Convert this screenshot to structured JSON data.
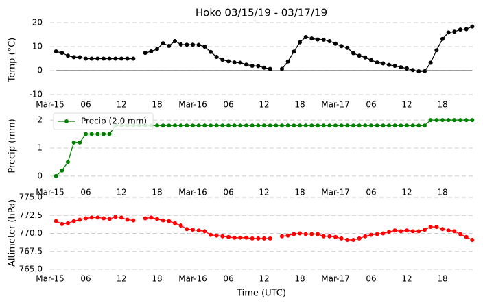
{
  "chart_data": [
    {
      "type": "line",
      "title": "Hoko 03/15/19 - 03/17/19",
      "y_label": "Temp (°C)",
      "x": [
        "2019-03-15T01:00",
        "2019-03-15T02:00",
        "2019-03-15T03:00",
        "2019-03-15T04:00",
        "2019-03-15T05:00",
        "2019-03-15T06:00",
        "2019-03-15T07:00",
        "2019-03-15T08:00",
        "2019-03-15T09:00",
        "2019-03-15T10:00",
        "2019-03-15T11:00",
        "2019-03-15T12:00",
        "2019-03-15T13:00",
        "2019-03-15T14:00",
        "2019-03-15T15:00",
        "2019-03-15T16:00",
        "2019-03-15T17:00",
        "2019-03-15T18:00",
        "2019-03-15T19:00",
        "2019-03-15T20:00",
        "2019-03-15T21:00",
        "2019-03-15T22:00",
        "2019-03-15T23:00",
        "2019-03-16T00:00",
        "2019-03-16T01:00",
        "2019-03-16T02:00",
        "2019-03-16T03:00",
        "2019-03-16T04:00",
        "2019-03-16T05:00",
        "2019-03-16T06:00",
        "2019-03-16T07:00",
        "2019-03-16T08:00",
        "2019-03-16T09:00",
        "2019-03-16T10:00",
        "2019-03-16T11:00",
        "2019-03-16T12:00",
        "2019-03-16T13:00",
        "2019-03-16T14:00",
        "2019-03-16T15:00",
        "2019-03-16T16:00",
        "2019-03-16T17:00",
        "2019-03-16T18:00",
        "2019-03-16T19:00",
        "2019-03-16T20:00",
        "2019-03-16T21:00",
        "2019-03-16T22:00",
        "2019-03-16T23:00",
        "2019-03-17T00:00",
        "2019-03-17T01:00",
        "2019-03-17T02:00",
        "2019-03-17T03:00",
        "2019-03-17T04:00",
        "2019-03-17T05:00",
        "2019-03-17T06:00",
        "2019-03-17T07:00",
        "2019-03-17T08:00",
        "2019-03-17T09:00",
        "2019-03-17T10:00",
        "2019-03-17T11:00",
        "2019-03-17T12:00",
        "2019-03-17T13:00",
        "2019-03-17T14:00",
        "2019-03-17T15:00",
        "2019-03-17T16:00",
        "2019-03-17T17:00",
        "2019-03-17T18:00",
        "2019-03-17T19:00",
        "2019-03-17T20:00",
        "2019-03-17T21:00",
        "2019-03-17T22:00",
        "2019-03-17T23:00"
      ],
      "series": [
        {
          "color": "#000000",
          "values": [
            8,
            7.4,
            6.2,
            5.6,
            5.6,
            5,
            5,
            5,
            5,
            5,
            5,
            5,
            5,
            5,
            null,
            7.4,
            8,
            9,
            11.4,
            10.3,
            12.3,
            10.9,
            10.8,
            10.8,
            10.7,
            10,
            7.8,
            5.7,
            4.5,
            3.9,
            3.4,
            3.3,
            2.5,
            2,
            1.9,
            1.2,
            0.7,
            null,
            0.7,
            3.8,
            7.9,
            11.8,
            14,
            13.4,
            13,
            12.9,
            12.3,
            11.2,
            10.2,
            9.5,
            7.3,
            6.2,
            5.5,
            4.4,
            3.4,
            3,
            2.4,
            2,
            1.4,
            0.9,
            0.2,
            -0.3,
            -0.3,
            3.3,
            8.5,
            13.2,
            15.9,
            16.2,
            17.1,
            17.3,
            18.4
          ]
        }
      ],
      "xlim": [
        "2019-03-15T00:00",
        "2019-03-18T00:00"
      ],
      "xticks": [
        {
          "value": "2019-03-15T00:00",
          "label": "Mar-15"
        },
        {
          "value": "2019-03-15T06:00",
          "label": "06"
        },
        {
          "value": "2019-03-15T12:00",
          "label": "12"
        },
        {
          "value": "2019-03-15T18:00",
          "label": "18"
        },
        {
          "value": "2019-03-16T00:00",
          "label": "Mar-16"
        },
        {
          "value": "2019-03-16T06:00",
          "label": "06"
        },
        {
          "value": "2019-03-16T12:00",
          "label": "12"
        },
        {
          "value": "2019-03-16T18:00",
          "label": "18"
        },
        {
          "value": "2019-03-17T00:00",
          "label": "Mar-17"
        },
        {
          "value": "2019-03-17T06:00",
          "label": "06"
        },
        {
          "value": "2019-03-17T12:00",
          "label": "12"
        },
        {
          "value": "2019-03-17T18:00",
          "label": "18"
        }
      ],
      "ylim": [
        -12,
        21
      ],
      "yticks": [
        -10,
        0,
        10,
        20
      ],
      "grid": true,
      "zero_line": true
    },
    {
      "type": "line",
      "y_label": "Precip (mm)",
      "x": [
        "2019-03-15T01:00",
        "2019-03-15T02:00",
        "2019-03-15T03:00",
        "2019-03-15T04:00",
        "2019-03-15T05:00",
        "2019-03-15T06:00",
        "2019-03-15T07:00",
        "2019-03-15T08:00",
        "2019-03-15T09:00",
        "2019-03-15T10:00",
        "2019-03-15T11:00",
        "2019-03-15T12:00",
        "2019-03-15T13:00",
        "2019-03-15T14:00",
        "2019-03-15T15:00",
        "2019-03-15T16:00",
        "2019-03-15T17:00",
        "2019-03-15T18:00",
        "2019-03-15T19:00",
        "2019-03-15T20:00",
        "2019-03-15T21:00",
        "2019-03-15T22:00",
        "2019-03-15T23:00",
        "2019-03-16T00:00",
        "2019-03-16T01:00",
        "2019-03-16T02:00",
        "2019-03-16T03:00",
        "2019-03-16T04:00",
        "2019-03-16T05:00",
        "2019-03-16T06:00",
        "2019-03-16T07:00",
        "2019-03-16T08:00",
        "2019-03-16T09:00",
        "2019-03-16T10:00",
        "2019-03-16T11:00",
        "2019-03-16T12:00",
        "2019-03-16T13:00",
        "2019-03-16T14:00",
        "2019-03-16T15:00",
        "2019-03-16T16:00",
        "2019-03-16T17:00",
        "2019-03-16T18:00",
        "2019-03-16T19:00",
        "2019-03-16T20:00",
        "2019-03-16T21:00",
        "2019-03-16T22:00",
        "2019-03-16T23:00",
        "2019-03-17T00:00",
        "2019-03-17T01:00",
        "2019-03-17T02:00",
        "2019-03-17T03:00",
        "2019-03-17T04:00",
        "2019-03-17T05:00",
        "2019-03-17T06:00",
        "2019-03-17T07:00",
        "2019-03-17T08:00",
        "2019-03-17T09:00",
        "2019-03-17T10:00",
        "2019-03-17T11:00",
        "2019-03-17T12:00",
        "2019-03-17T13:00",
        "2019-03-17T14:00",
        "2019-03-17T15:00",
        "2019-03-17T16:00",
        "2019-03-17T17:00",
        "2019-03-17T18:00",
        "2019-03-17T19:00",
        "2019-03-17T20:00",
        "2019-03-17T21:00",
        "2019-03-17T22:00",
        "2019-03-17T23:00"
      ],
      "series": [
        {
          "name": "Precip (2.0 mm)",
          "color": "#008000",
          "values": [
            0,
            0.2,
            0.5,
            1.2,
            1.2,
            1.5,
            1.5,
            1.5,
            1.5,
            1.5,
            1.8,
            1.8,
            1.8,
            1.8,
            1.8,
            1.8,
            1.8,
            1.8,
            1.8,
            1.8,
            1.8,
            1.8,
            1.8,
            1.8,
            1.8,
            1.8,
            1.8,
            1.8,
            1.8,
            1.8,
            1.8,
            1.8,
            1.8,
            1.8,
            1.8,
            1.8,
            1.8,
            1.8,
            1.8,
            1.8,
            1.8,
            1.8,
            1.8,
            1.8,
            1.8,
            1.8,
            1.8,
            1.8,
            1.8,
            1.8,
            1.8,
            1.8,
            1.8,
            1.8,
            1.8,
            1.8,
            1.8,
            1.8,
            1.8,
            1.8,
            1.8,
            1.8,
            1.8,
            2,
            2,
            2,
            2,
            2,
            2,
            2,
            2
          ]
        }
      ],
      "xlim": [
        "2019-03-15T00:00",
        "2019-03-18T00:00"
      ],
      "xticks": [
        {
          "value": "2019-03-15T00:00",
          "label": "Mar-15"
        },
        {
          "value": "2019-03-15T06:00",
          "label": "06"
        },
        {
          "value": "2019-03-15T12:00",
          "label": "12"
        },
        {
          "value": "2019-03-15T18:00",
          "label": "18"
        },
        {
          "value": "2019-03-16T00:00",
          "label": "Mar-16"
        },
        {
          "value": "2019-03-16T06:00",
          "label": "06"
        },
        {
          "value": "2019-03-16T12:00",
          "label": "12"
        },
        {
          "value": "2019-03-16T18:00",
          "label": "18"
        },
        {
          "value": "2019-03-17T00:00",
          "label": "Mar-17"
        },
        {
          "value": "2019-03-17T06:00",
          "label": "06"
        },
        {
          "value": "2019-03-17T12:00",
          "label": "12"
        },
        {
          "value": "2019-03-17T18:00",
          "label": "18"
        }
      ],
      "ylim": [
        -0.1,
        2.1
      ],
      "yticks": [
        0,
        1,
        2
      ],
      "grid": true,
      "legend": "upper left"
    },
    {
      "type": "line",
      "y_label": "Altimeter (hPa)",
      "x_label": "Time (UTC)",
      "x": [
        "2019-03-15T01:00",
        "2019-03-15T02:00",
        "2019-03-15T03:00",
        "2019-03-15T04:00",
        "2019-03-15T05:00",
        "2019-03-15T06:00",
        "2019-03-15T07:00",
        "2019-03-15T08:00",
        "2019-03-15T09:00",
        "2019-03-15T10:00",
        "2019-03-15T11:00",
        "2019-03-15T12:00",
        "2019-03-15T13:00",
        "2019-03-15T14:00",
        "2019-03-15T15:00",
        "2019-03-15T16:00",
        "2019-03-15T17:00",
        "2019-03-15T18:00",
        "2019-03-15T19:00",
        "2019-03-15T20:00",
        "2019-03-15T21:00",
        "2019-03-15T22:00",
        "2019-03-15T23:00",
        "2019-03-16T00:00",
        "2019-03-16T01:00",
        "2019-03-16T02:00",
        "2019-03-16T03:00",
        "2019-03-16T04:00",
        "2019-03-16T05:00",
        "2019-03-16T06:00",
        "2019-03-16T07:00",
        "2019-03-16T08:00",
        "2019-03-16T09:00",
        "2019-03-16T10:00",
        "2019-03-16T11:00",
        "2019-03-16T12:00",
        "2019-03-16T13:00",
        "2019-03-16T14:00",
        "2019-03-16T15:00",
        "2019-03-16T16:00",
        "2019-03-16T17:00",
        "2019-03-16T18:00",
        "2019-03-16T19:00",
        "2019-03-16T20:00",
        "2019-03-16T21:00",
        "2019-03-16T22:00",
        "2019-03-16T23:00",
        "2019-03-17T00:00",
        "2019-03-17T01:00",
        "2019-03-17T02:00",
        "2019-03-17T03:00",
        "2019-03-17T04:00",
        "2019-03-17T05:00",
        "2019-03-17T06:00",
        "2019-03-17T07:00",
        "2019-03-17T08:00",
        "2019-03-17T09:00",
        "2019-03-17T10:00",
        "2019-03-17T11:00",
        "2019-03-17T12:00",
        "2019-03-17T13:00",
        "2019-03-17T14:00",
        "2019-03-17T15:00",
        "2019-03-17T16:00",
        "2019-03-17T17:00",
        "2019-03-17T18:00",
        "2019-03-17T19:00",
        "2019-03-17T20:00",
        "2019-03-17T21:00",
        "2019-03-17T22:00",
        "2019-03-17T23:00"
      ],
      "series": [
        {
          "color": "#ff0000",
          "values": [
            771.7,
            771.3,
            771.4,
            771.7,
            771.9,
            772.1,
            772.2,
            772.2,
            772.1,
            772.0,
            772.3,
            772.2,
            771.9,
            771.8,
            null,
            772.1,
            772.2,
            772.0,
            771.8,
            771.7,
            771.4,
            771.1,
            770.6,
            770.5,
            770.4,
            770.3,
            769.8,
            769.7,
            769.6,
            769.5,
            769.4,
            769.4,
            769.4,
            769.3,
            769.3,
            769.3,
            769.3,
            null,
            769.6,
            769.7,
            769.9,
            770.0,
            769.9,
            769.9,
            769.9,
            769.6,
            769.6,
            769.5,
            769.3,
            769.1,
            769.1,
            769.3,
            769.6,
            769.8,
            769.9,
            770.0,
            770.2,
            770.4,
            770.3,
            770.4,
            770.3,
            770.3,
            770.5,
            770.9,
            770.9,
            770.6,
            770.4,
            770.3,
            769.9,
            769.5,
            769.1
          ]
        }
      ],
      "xlim": [
        "2019-03-15T00:00",
        "2019-03-18T00:00"
      ],
      "xticks": [
        {
          "value": "2019-03-15T00:00",
          "label": "Mar-15"
        },
        {
          "value": "2019-03-15T06:00",
          "label": "06"
        },
        {
          "value": "2019-03-15T12:00",
          "label": "12"
        },
        {
          "value": "2019-03-15T18:00",
          "label": "18"
        },
        {
          "value": "2019-03-16T00:00",
          "label": "Mar-16"
        },
        {
          "value": "2019-03-16T06:00",
          "label": "06"
        },
        {
          "value": "2019-03-16T12:00",
          "label": "12"
        },
        {
          "value": "2019-03-16T18:00",
          "label": "18"
        },
        {
          "value": "2019-03-17T00:00",
          "label": "Mar-17"
        },
        {
          "value": "2019-03-17T06:00",
          "label": "06"
        },
        {
          "value": "2019-03-17T12:00",
          "label": "12"
        },
        {
          "value": "2019-03-17T18:00",
          "label": "18"
        }
      ],
      "ylim": [
        765,
        775
      ],
      "yticks": [
        {
          "value": 765,
          "label": "765.0"
        },
        {
          "value": 767.5,
          "label": "767.5"
        },
        {
          "value": 770,
          "label": "770.0"
        },
        {
          "value": 772.5,
          "label": "772.5"
        },
        {
          "value": 775,
          "label": "775.0"
        }
      ],
      "grid": true
    }
  ]
}
